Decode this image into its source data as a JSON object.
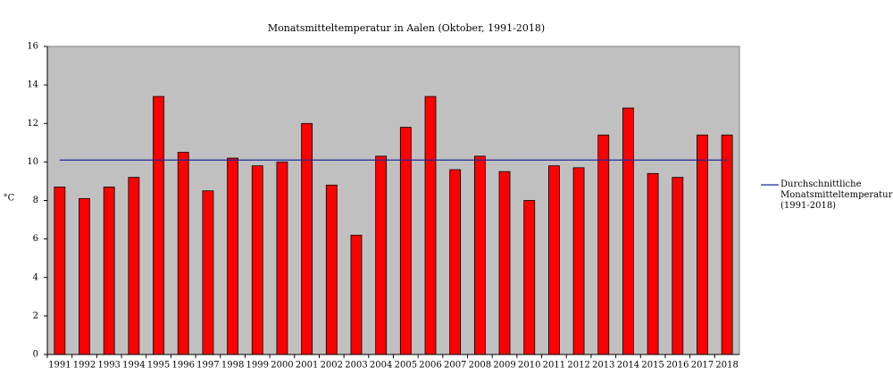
{
  "chart_data": {
    "type": "bar",
    "title": "Monatsmitteltemperatur in Aalen (Oktober, 1991-2018)",
    "y_label": "°C",
    "categories": [
      "1991",
      "1992",
      "1993",
      "1994",
      "1995",
      "1996",
      "1997",
      "1998",
      "1999",
      "2000",
      "2001",
      "2002",
      "2003",
      "2004",
      "2005",
      "2006",
      "2007",
      "2008",
      "2009",
      "2010",
      "2011",
      "2012",
      "2013",
      "2014",
      "2015",
      "2016",
      "2017",
      "2018"
    ],
    "values": [
      8.7,
      8.1,
      8.7,
      9.2,
      13.4,
      10.5,
      8.5,
      10.2,
      9.8,
      10.0,
      12.0,
      8.8,
      6.2,
      10.3,
      11.8,
      13.4,
      9.6,
      10.3,
      9.5,
      8.0,
      9.8,
      9.7,
      11.4,
      12.8,
      9.4,
      9.2,
      11.4,
      11.4
    ],
    "color": "#ff0000",
    "average": {
      "name": "Durchschnittliche Monatsmitteltemperatur (1991-2018)",
      "color": "#1f2a9c",
      "value": 10.1
    },
    "ylim": [
      0,
      16
    ],
    "yticks": [
      0,
      2,
      4,
      6,
      8,
      10,
      12,
      14,
      16
    ],
    "grid": false,
    "plot_background": "#c0c0c0",
    "legend": "right"
  }
}
